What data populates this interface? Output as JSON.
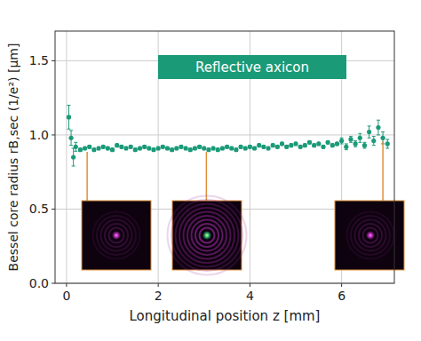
{
  "chart_data": {
    "type": "scatter",
    "title": "Reflective axicon",
    "xlabel": "Longitudinal position z [mm]",
    "ylabel": "Bessel core radius rB,sec (1/e²) [µm]",
    "x": [
      0.05,
      0.1,
      0.15,
      0.2,
      0.3,
      0.4,
      0.5,
      0.6,
      0.7,
      0.8,
      0.9,
      1.0,
      1.1,
      1.2,
      1.3,
      1.4,
      1.5,
      1.6,
      1.7,
      1.8,
      1.9,
      2.0,
      2.1,
      2.2,
      2.3,
      2.4,
      2.5,
      2.6,
      2.7,
      2.8,
      2.9,
      3.0,
      3.1,
      3.2,
      3.3,
      3.4,
      3.5,
      3.6,
      3.7,
      3.8,
      3.9,
      4.0,
      4.1,
      4.2,
      4.3,
      4.4,
      4.5,
      4.6,
      4.7,
      4.8,
      4.9,
      5.0,
      5.1,
      5.2,
      5.3,
      5.4,
      5.5,
      5.6,
      5.7,
      5.8,
      5.9,
      6.0,
      6.1,
      6.2,
      6.3,
      6.4,
      6.5,
      6.6,
      6.7,
      6.8,
      6.9,
      7.0
    ],
    "values": [
      1.12,
      0.98,
      0.85,
      0.92,
      0.9,
      0.91,
      0.92,
      0.9,
      0.91,
      0.92,
      0.91,
      0.9,
      0.93,
      0.92,
      0.91,
      0.92,
      0.9,
      0.91,
      0.92,
      0.91,
      0.9,
      0.91,
      0.92,
      0.91,
      0.9,
      0.91,
      0.92,
      0.91,
      0.9,
      0.91,
      0.92,
      0.91,
      0.9,
      0.91,
      0.9,
      0.91,
      0.92,
      0.91,
      0.9,
      0.92,
      0.91,
      0.92,
      0.91,
      0.93,
      0.92,
      0.91,
      0.93,
      0.92,
      0.94,
      0.92,
      0.93,
      0.94,
      0.92,
      0.93,
      0.95,
      0.93,
      0.94,
      0.92,
      0.95,
      0.93,
      0.94,
      0.96,
      0.92,
      0.97,
      0.94,
      0.98,
      0.93,
      1.02,
      0.96,
      1.05,
      0.98,
      0.94
    ],
    "errors": [
      0.08,
      0.05,
      0.06,
      0.03,
      0.01,
      0.01,
      0.01,
      0.01,
      0.01,
      0.01,
      0.01,
      0.01,
      0.01,
      0.01,
      0.01,
      0.01,
      0.01,
      0.01,
      0.01,
      0.01,
      0.01,
      0.01,
      0.01,
      0.01,
      0.01,
      0.01,
      0.01,
      0.01,
      0.01,
      0.01,
      0.01,
      0.01,
      0.01,
      0.01,
      0.01,
      0.01,
      0.01,
      0.01,
      0.01,
      0.01,
      0.01,
      0.01,
      0.01,
      0.01,
      0.01,
      0.01,
      0.01,
      0.01,
      0.01,
      0.01,
      0.01,
      0.01,
      0.01,
      0.01,
      0.01,
      0.01,
      0.01,
      0.01,
      0.01,
      0.01,
      0.01,
      0.02,
      0.02,
      0.02,
      0.02,
      0.03,
      0.02,
      0.04,
      0.03,
      0.05,
      0.04,
      0.03
    ],
    "color": "#1b9a78",
    "marker": "circle",
    "xlim": [
      -0.25,
      7.15
    ],
    "ylim": [
      0,
      1.7
    ],
    "xticks": [
      0,
      2,
      4,
      6
    ],
    "yticks": [
      {
        "value": 0,
        "label": "0.0"
      },
      {
        "value": 0.5,
        "label": "0.5"
      },
      {
        "value": 1.0,
        "label": "1.0"
      },
      {
        "value": 1.5,
        "label": "1.5"
      }
    ],
    "grid": true,
    "insets_z": [
      0.45,
      3.05,
      6.9
    ]
  }
}
